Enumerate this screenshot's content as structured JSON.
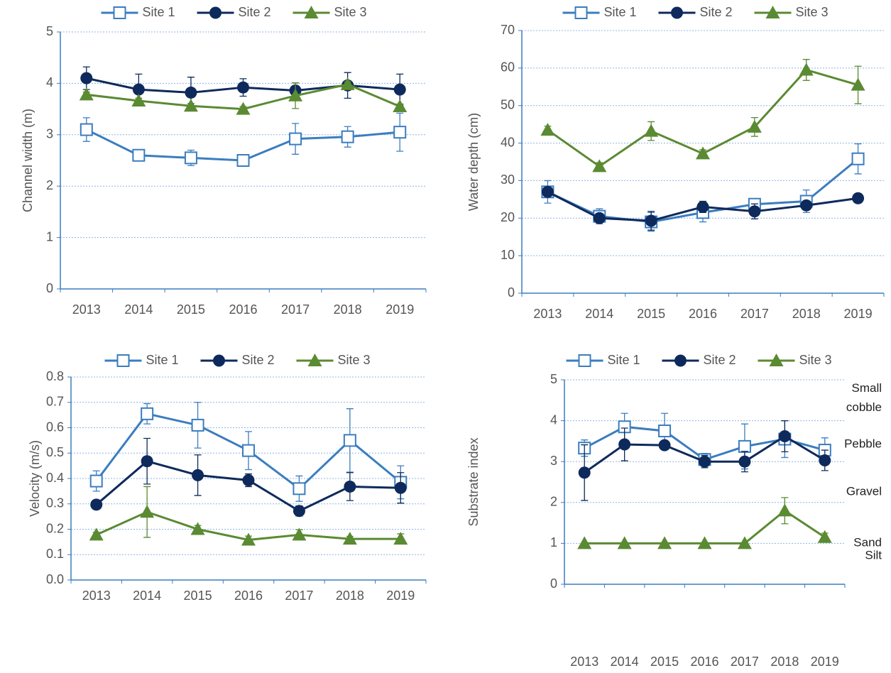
{
  "chart_data": [
    {
      "type": "line",
      "ylabel": "Channel width (m)",
      "categories": [
        "2013",
        "2014",
        "2015",
        "2016",
        "2017",
        "2018",
        "2019"
      ],
      "ylim": [
        0,
        5
      ],
      "yticks": [
        0,
        1,
        2,
        3,
        4,
        5
      ],
      "grid": true,
      "series": [
        {
          "name": "Site 1",
          "color": "#3b7dbf",
          "marker": "open-square",
          "values": [
            3.1,
            2.6,
            2.55,
            2.5,
            2.92,
            2.96,
            3.05
          ],
          "errors": [
            0.23,
            0.05,
            0.15,
            0.05,
            0.3,
            0.2,
            0.37
          ]
        },
        {
          "name": "Site 2",
          "color": "#0e2a5c",
          "marker": "circle",
          "values": [
            4.1,
            3.88,
            3.82,
            3.92,
            3.86,
            3.96,
            3.88
          ],
          "errors": [
            0.22,
            0.3,
            0.3,
            0.17,
            0.15,
            0.25,
            0.3
          ]
        },
        {
          "name": "Site 3",
          "color": "#5a8a32",
          "marker": "triangle",
          "values": [
            3.78,
            3.66,
            3.56,
            3.5,
            3.76,
            3.98,
            3.55
          ],
          "errors": [
            0.05,
            0.05,
            0.05,
            0.05,
            0.25,
            0.05,
            0.05
          ]
        }
      ]
    },
    {
      "type": "line",
      "ylabel": "Water depth (cm)",
      "categories": [
        "2013",
        "2014",
        "2015",
        "2016",
        "2017",
        "2018",
        "2019"
      ],
      "ylim": [
        0,
        70
      ],
      "yticks": [
        0,
        10,
        20,
        30,
        40,
        50,
        60,
        70
      ],
      "grid": true,
      "series": [
        {
          "name": "Site 1",
          "color": "#3b7dbf",
          "marker": "open-square",
          "values": [
            27,
            20.5,
            19,
            21.5,
            23.7,
            24.5,
            35.8
          ],
          "errors": [
            3,
            2,
            2.5,
            2.5,
            1,
            3,
            4
          ]
        },
        {
          "name": "Site 2",
          "color": "#0e2a5c",
          "marker": "circle",
          "values": [
            27,
            20,
            19.3,
            23,
            21.8,
            23.4,
            25.3
          ],
          "errors": [
            1,
            1,
            2.5,
            1.5,
            2,
            1,
            1
          ]
        },
        {
          "name": "Site 3",
          "color": "#5a8a32",
          "marker": "triangle",
          "values": [
            43.5,
            33.8,
            43.2,
            37.2,
            44.3,
            59.5,
            55.5
          ],
          "errors": [
            1,
            1,
            2.5,
            1,
            2.5,
            2.8,
            5
          ]
        }
      ]
    },
    {
      "type": "line",
      "ylabel": "Velocity (m/s)",
      "categories": [
        "2013",
        "2014",
        "2015",
        "2016",
        "2017",
        "2018",
        "2019"
      ],
      "ylim": [
        0,
        0.8
      ],
      "yticks": [
        {
          "value": 0,
          "label": "0.0"
        },
        0.1,
        0.2,
        0.3,
        0.4,
        0.5,
        0.6,
        0.7,
        0.8
      ],
      "grid": true,
      "series": [
        {
          "name": "Site 1",
          "color": "#3b7dbf",
          "marker": "open-square",
          "values": [
            0.39,
            0.655,
            0.61,
            0.51,
            0.36,
            0.55,
            0.385
          ],
          "errors": [
            0.04,
            0.04,
            0.09,
            0.075,
            0.05,
            0.125,
            0.065
          ]
        },
        {
          "name": "Site 2",
          "color": "#0e2a5c",
          "marker": "circle",
          "values": [
            0.297,
            0.468,
            0.413,
            0.393,
            0.272,
            0.368,
            0.363
          ],
          "errors": [
            0.01,
            0.09,
            0.08,
            0.025,
            0.02,
            0.055,
            0.06
          ]
        },
        {
          "name": "Site 3",
          "color": "#5a8a32",
          "marker": "triangle",
          "values": [
            0.178,
            0.268,
            0.2,
            0.158,
            0.178,
            0.162,
            0.162
          ],
          "errors": [
            0.01,
            0.1,
            0.015,
            0.015,
            0.02,
            0.01,
            0.02
          ]
        }
      ]
    },
    {
      "type": "line",
      "ylabel": "Substrate index",
      "categories": [
        "2013",
        "2014",
        "2015",
        "2016",
        "2017",
        "2018",
        "2019"
      ],
      "ylim": [
        0,
        5
      ],
      "yticks": [
        0,
        1,
        2,
        3,
        4,
        5
      ],
      "grid": true,
      "annotations": [
        "Small cobble",
        "Pebble",
        "Gravel",
        "Sand",
        "Silt"
      ],
      "series": [
        {
          "name": "Site 1",
          "color": "#3b7dbf",
          "marker": "open-square",
          "values": [
            3.33,
            3.85,
            3.75,
            3.05,
            3.37,
            3.55,
            3.28
          ],
          "errors": [
            0.2,
            0.33,
            0.43,
            0.15,
            0.55,
            0.45,
            0.3
          ]
        },
        {
          "name": "Site 2",
          "color": "#0e2a5c",
          "marker": "circle",
          "values": [
            2.73,
            3.42,
            3.4,
            3.0,
            3.0,
            3.62,
            3.03
          ],
          "errors": [
            0.68,
            0.4,
            0.1,
            0.15,
            0.25,
            0.38,
            0.25
          ]
        },
        {
          "name": "Site 3",
          "color": "#5a8a32",
          "marker": "triangle",
          "values": [
            1,
            1,
            1,
            1,
            1,
            1.8,
            1.15
          ],
          "errors": [
            0,
            0,
            0,
            0,
            0,
            0.32,
            0.1
          ]
        }
      ]
    }
  ]
}
